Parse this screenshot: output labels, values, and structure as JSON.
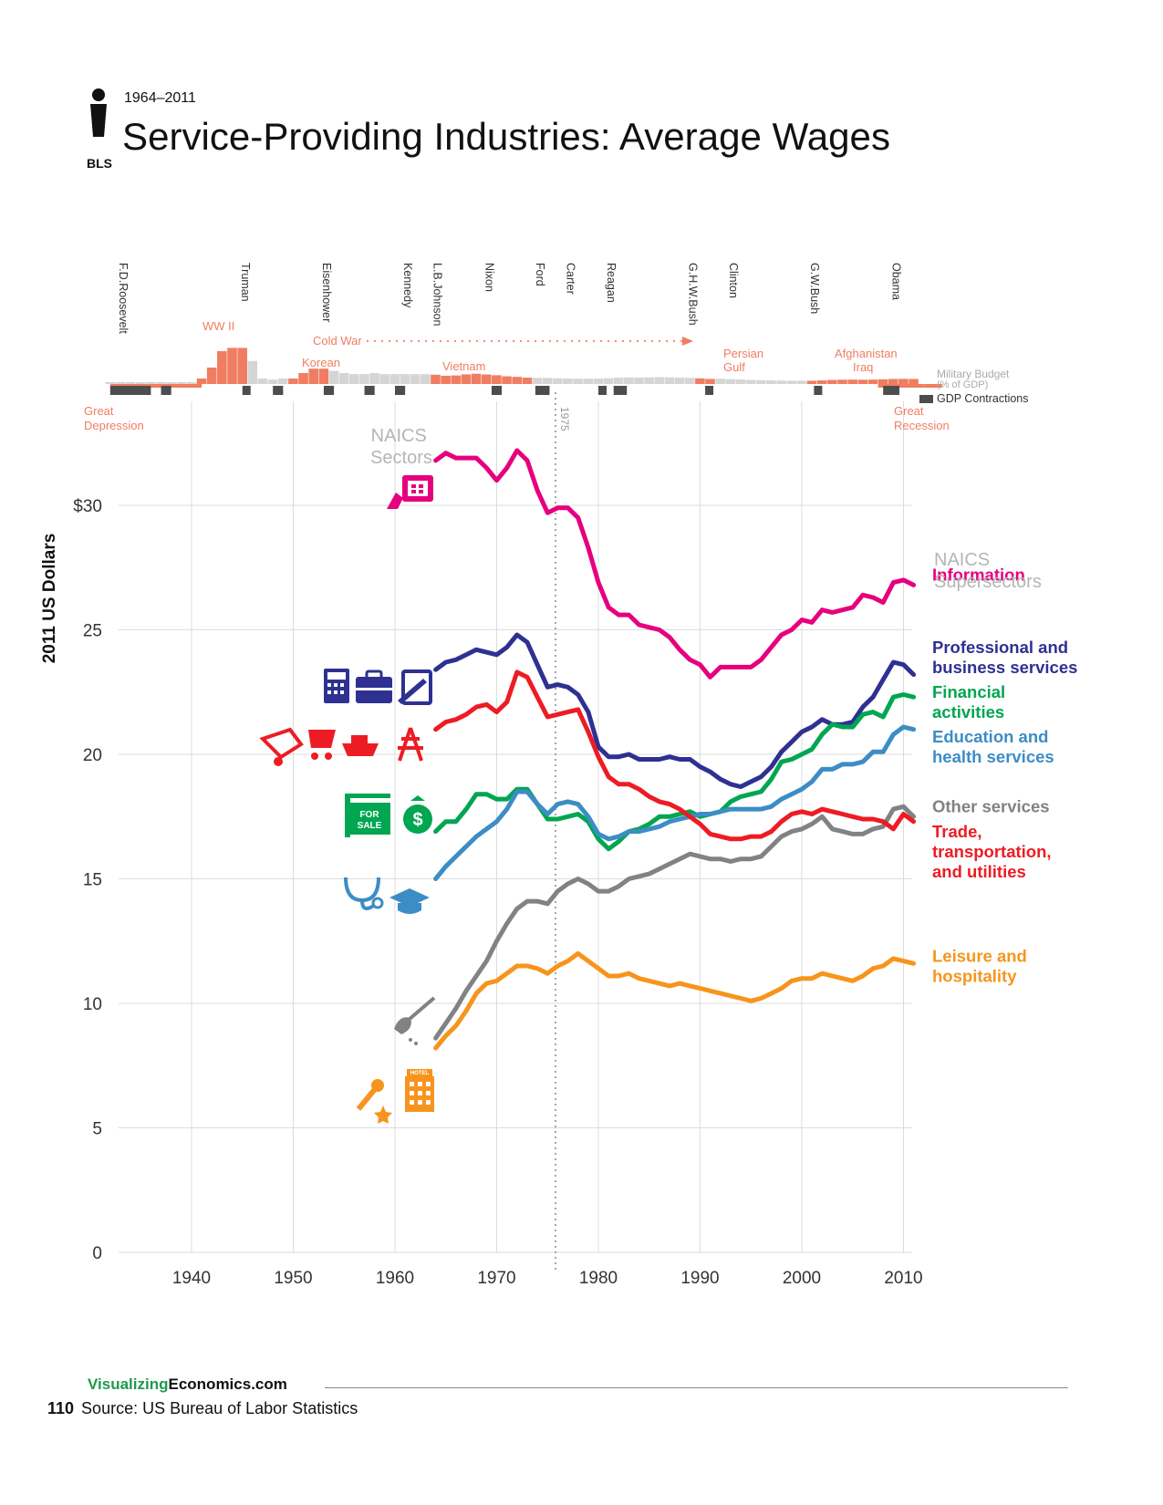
{
  "header": {
    "years": "1964–2011",
    "title": "Service-Providing Industries: Average Wages",
    "source_badge": "BLS"
  },
  "footer": {
    "brand_part1": "Visualizing",
    "brand_part2": "Economics.com",
    "page_number": "110",
    "source": "Source: US Bureau of Labor Statistics"
  },
  "timeline": {
    "presidents": [
      {
        "name": "F.D.Roosevelt",
        "year": 1933
      },
      {
        "name": "Truman",
        "year": 1945
      },
      {
        "name": "Eisenhower",
        "year": 1953
      },
      {
        "name": "Kennedy",
        "year": 1961
      },
      {
        "name": "L.B.Johnson",
        "year": 1963.9
      },
      {
        "name": "Nixon",
        "year": 1969
      },
      {
        "name": "Ford",
        "year": 1974
      },
      {
        "name": "Carter",
        "year": 1977
      },
      {
        "name": "Reagan",
        "year": 1981
      },
      {
        "name": "G.H.W.Bush",
        "year": 1989
      },
      {
        "name": "Clinton",
        "year": 1993
      },
      {
        "name": "G.W.Bush",
        "year": 2001
      },
      {
        "name": "Obama",
        "year": 2009
      }
    ],
    "wars": [
      {
        "label": "WW II"
      },
      {
        "label": "Cold War"
      },
      {
        "label": "Korean"
      },
      {
        "label": "Vietnam"
      },
      {
        "label": "Persian Gulf"
      },
      {
        "label": "Afghanistan Iraq"
      }
    ],
    "other_labels": {
      "great_depression": "Great Depression",
      "great_recession": "Great Recession",
      "military_budget": "Military Budget",
      "military_budget_unit": "(% of GDP)",
      "gdp_contractions": "GDP Contractions",
      "marker_1975": "1975"
    },
    "military_budget_pct": [
      [
        1932,
        1.2
      ],
      [
        1933,
        1.2
      ],
      [
        1934,
        1.2
      ],
      [
        1935,
        1.2
      ],
      [
        1936,
        1.2
      ],
      [
        1937,
        1.2
      ],
      [
        1938,
        1.2
      ],
      [
        1939,
        1.2
      ],
      [
        1940,
        1.5
      ],
      [
        1941,
        5
      ],
      [
        1942,
        15
      ],
      [
        1943,
        30
      ],
      [
        1944,
        33
      ],
      [
        1945,
        33
      ],
      [
        1946,
        21
      ],
      [
        1947,
        5
      ],
      [
        1948,
        4
      ],
      [
        1949,
        5
      ],
      [
        1950,
        5
      ],
      [
        1951,
        10
      ],
      [
        1952,
        14
      ],
      [
        1953,
        14
      ],
      [
        1954,
        12
      ],
      [
        1955,
        10
      ],
      [
        1956,
        9
      ],
      [
        1957,
        9
      ],
      [
        1958,
        10
      ],
      [
        1959,
        9
      ],
      [
        1960,
        9
      ],
      [
        1961,
        9
      ],
      [
        1962,
        9
      ],
      [
        1963,
        9
      ],
      [
        1964,
        8.5
      ],
      [
        1965,
        7.5
      ],
      [
        1966,
        7.8
      ],
      [
        1967,
        8.8
      ],
      [
        1968,
        9.4
      ],
      [
        1969,
        8.7
      ],
      [
        1970,
        8
      ],
      [
        1971,
        7
      ],
      [
        1972,
        6.5
      ],
      [
        1973,
        5.8
      ],
      [
        1974,
        5.6
      ],
      [
        1975,
        5.6
      ],
      [
        1976,
        5.2
      ],
      [
        1977,
        5
      ],
      [
        1978,
        4.8
      ],
      [
        1979,
        4.8
      ],
      [
        1980,
        5
      ],
      [
        1981,
        5.3
      ],
      [
        1982,
        5.8
      ],
      [
        1983,
        6
      ],
      [
        1984,
        5.9
      ],
      [
        1985,
        6.1
      ],
      [
        1986,
        6.2
      ],
      [
        1987,
        6.1
      ],
      [
        1988,
        5.8
      ],
      [
        1989,
        5.6
      ],
      [
        1990,
        5.2
      ],
      [
        1991,
        4.6
      ],
      [
        1992,
        4.8
      ],
      [
        1993,
        4.4
      ],
      [
        1994,
        4.1
      ],
      [
        1995,
        3.7
      ],
      [
        1996,
        3.5
      ],
      [
        1997,
        3.3
      ],
      [
        1998,
        3.1
      ],
      [
        1999,
        3
      ],
      [
        2000,
        3
      ],
      [
        2001,
        3
      ],
      [
        2002,
        3.3
      ],
      [
        2003,
        3.7
      ],
      [
        2004,
        3.9
      ],
      [
        2005,
        4
      ],
      [
        2006,
        3.9
      ],
      [
        2007,
        4
      ],
      [
        2008,
        4.3
      ],
      [
        2009,
        4.6
      ],
      [
        2010,
        4.7
      ],
      [
        2011,
        4.6
      ]
    ],
    "gdp_contractions": [
      [
        1932,
        1936
      ],
      [
        1937,
        1938
      ],
      [
        1945,
        1945.8
      ],
      [
        1948,
        1949
      ],
      [
        1953,
        1954
      ],
      [
        1957,
        1958
      ],
      [
        1960,
        1961
      ],
      [
        1969.5,
        1970.5
      ],
      [
        1973.8,
        1975.2
      ],
      [
        1980,
        1980.6
      ],
      [
        1981.5,
        1982.8
      ],
      [
        1990.5,
        1991.3
      ],
      [
        2001.2,
        2001.9
      ],
      [
        2008,
        2009.6
      ]
    ]
  },
  "chart_data": {
    "type": "line",
    "title": "Service-Providing Industries: Average Wages",
    "xlabel": "",
    "ylabel": "2011 US Dollars",
    "xlim": [
      1932,
      2012
    ],
    "ylim": [
      0,
      30
    ],
    "x_ticks": [
      "1940",
      "1950",
      "1960",
      "1970",
      "1980",
      "1990",
      "2000",
      "2010"
    ],
    "y_ticks": [
      {
        "v": 0,
        "label": "0"
      },
      {
        "v": 5,
        "label": "5"
      },
      {
        "v": 10,
        "label": "10"
      },
      {
        "v": 15,
        "label": "15"
      },
      {
        "v": 20,
        "label": "20"
      },
      {
        "v": 25,
        "label": "25"
      },
      {
        "v": 30,
        "label": "$30"
      }
    ],
    "annotations": {
      "naics_sectors": "NAICS Sectors",
      "naics_supersectors": "NAICS Supersectors"
    },
    "years": [
      1964,
      1965,
      1966,
      1967,
      1968,
      1969,
      1970,
      1971,
      1972,
      1973,
      1974,
      1975,
      1976,
      1977,
      1978,
      1979,
      1980,
      1981,
      1982,
      1983,
      1984,
      1985,
      1986,
      1987,
      1988,
      1989,
      1990,
      1991,
      1992,
      1993,
      1994,
      1995,
      1996,
      1997,
      1998,
      1999,
      2000,
      2001,
      2002,
      2003,
      2004,
      2005,
      2006,
      2007,
      2008,
      2009,
      2010,
      2011
    ],
    "series": [
      {
        "name": "Information",
        "label": [
          "Information"
        ],
        "color": "#e6007e",
        "label_y": 26.9,
        "values": [
          31.8,
          32.1,
          31.9,
          31.9,
          31.9,
          31.5,
          31.0,
          31.5,
          32.2,
          31.8,
          30.6,
          29.7,
          29.9,
          29.9,
          29.5,
          28.3,
          26.9,
          25.9,
          25.6,
          25.6,
          25.2,
          25.1,
          25.0,
          24.7,
          24.2,
          23.8,
          23.6,
          23.1,
          23.5,
          23.5,
          23.5,
          23.5,
          23.8,
          24.3,
          24.8,
          25.0,
          25.4,
          25.3,
          25.8,
          25.7,
          25.8,
          25.9,
          26.4,
          26.3,
          26.1,
          26.9,
          27.0,
          26.8
        ]
      },
      {
        "name": "Professional and business services",
        "label": [
          "Professional and",
          "business services"
        ],
        "color": "#2e3192",
        "label_y": 24.0,
        "values": [
          23.4,
          23.7,
          23.8,
          24.0,
          24.2,
          24.1,
          24.0,
          24.3,
          24.8,
          24.5,
          23.6,
          22.7,
          22.8,
          22.7,
          22.4,
          21.7,
          20.3,
          19.9,
          19.9,
          20.0,
          19.8,
          19.8,
          19.8,
          19.9,
          19.8,
          19.8,
          19.5,
          19.3,
          19.0,
          18.8,
          18.7,
          18.9,
          19.1,
          19.5,
          20.1,
          20.5,
          20.9,
          21.1,
          21.4,
          21.2,
          21.2,
          21.3,
          21.9,
          22.3,
          23.0,
          23.7,
          23.6,
          23.2
        ]
      },
      {
        "name": "Financial activities",
        "label": [
          "Financial",
          "activities"
        ],
        "color": "#00a651",
        "label_y": 22.2,
        "values": [
          16.9,
          17.3,
          17.3,
          17.8,
          18.4,
          18.4,
          18.2,
          18.2,
          18.6,
          18.6,
          18.0,
          17.4,
          17.4,
          17.5,
          17.6,
          17.3,
          16.6,
          16.2,
          16.5,
          16.9,
          17.0,
          17.2,
          17.5,
          17.5,
          17.6,
          17.7,
          17.5,
          17.6,
          17.7,
          18.1,
          18.3,
          18.4,
          18.5,
          19.0,
          19.7,
          19.8,
          20.0,
          20.2,
          20.8,
          21.2,
          21.1,
          21.1,
          21.6,
          21.7,
          21.5,
          22.3,
          22.4,
          22.3
        ]
      },
      {
        "name": "Education and health services",
        "label": [
          "Education and",
          "health services"
        ],
        "color": "#3c8dc5",
        "label_y": 20.4,
        "values": [
          15.0,
          15.5,
          15.9,
          16.3,
          16.7,
          17.0,
          17.3,
          17.8,
          18.5,
          18.5,
          18.0,
          17.6,
          18.0,
          18.1,
          18.0,
          17.5,
          16.8,
          16.6,
          16.7,
          16.9,
          16.9,
          17.0,
          17.1,
          17.3,
          17.4,
          17.5,
          17.6,
          17.6,
          17.7,
          17.8,
          17.8,
          17.8,
          17.8,
          17.9,
          18.2,
          18.4,
          18.6,
          18.9,
          19.4,
          19.4,
          19.6,
          19.6,
          19.7,
          20.1,
          20.1,
          20.8,
          21.1,
          21.0
        ]
      },
      {
        "name": "Other services",
        "label": [
          "Other services"
        ],
        "color": "#808285",
        "label_y": 17.6,
        "values": [
          8.6,
          9.2,
          9.8,
          10.5,
          11.1,
          11.7,
          12.5,
          13.2,
          13.8,
          14.1,
          14.1,
          14.0,
          14.5,
          14.8,
          15.0,
          14.8,
          14.5,
          14.5,
          14.7,
          15.0,
          15.1,
          15.2,
          15.4,
          15.6,
          15.8,
          16.0,
          15.9,
          15.8,
          15.8,
          15.7,
          15.8,
          15.8,
          15.9,
          16.3,
          16.7,
          16.9,
          17.0,
          17.2,
          17.5,
          17.0,
          16.9,
          16.8,
          16.8,
          17.0,
          17.1,
          17.8,
          17.9,
          17.5
        ]
      },
      {
        "name": "Trade, transportation, and utilities",
        "label": [
          "Trade,",
          "transportation,",
          "and utilities"
        ],
        "color": "#ed1c24",
        "label_y": 16.6,
        "values": [
          21.0,
          21.3,
          21.4,
          21.6,
          21.9,
          22.0,
          21.7,
          22.1,
          23.3,
          23.1,
          22.3,
          21.5,
          21.6,
          21.7,
          21.8,
          20.9,
          19.9,
          19.1,
          18.8,
          18.8,
          18.6,
          18.3,
          18.1,
          18.0,
          17.8,
          17.5,
          17.2,
          16.8,
          16.7,
          16.6,
          16.6,
          16.7,
          16.7,
          16.9,
          17.3,
          17.6,
          17.7,
          17.6,
          17.8,
          17.7,
          17.6,
          17.5,
          17.4,
          17.4,
          17.3,
          17.0,
          17.6,
          17.3
        ]
      },
      {
        "name": "Leisure and hospitality",
        "label": [
          "Leisure and",
          "hospitality"
        ],
        "color": "#f7941d",
        "label_y": 11.6,
        "values": [
          8.2,
          8.7,
          9.1,
          9.7,
          10.4,
          10.8,
          10.9,
          11.2,
          11.5,
          11.5,
          11.4,
          11.2,
          11.5,
          11.7,
          12.0,
          11.7,
          11.4,
          11.1,
          11.1,
          11.2,
          11.0,
          10.9,
          10.8,
          10.7,
          10.8,
          10.7,
          10.6,
          10.5,
          10.4,
          10.3,
          10.2,
          10.1,
          10.2,
          10.4,
          10.6,
          10.9,
          11.0,
          11.0,
          11.2,
          11.1,
          11.0,
          10.9,
          11.1,
          11.4,
          11.5,
          11.8,
          11.7,
          11.6
        ]
      }
    ]
  }
}
